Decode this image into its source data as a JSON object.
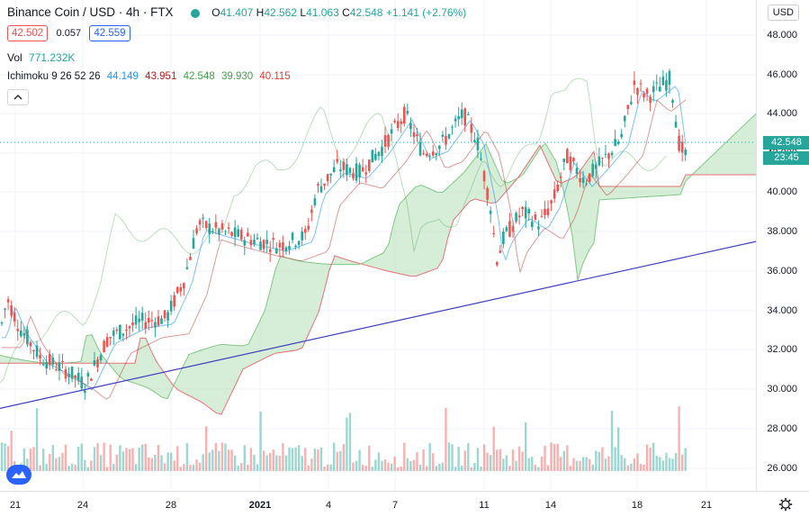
{
  "header": {
    "symbol": "Binance Coin / USD · 4h · FTX",
    "open_label": "O",
    "open": "41.407",
    "high_label": "H",
    "high": "42.562",
    "low_label": "L",
    "low": "41.063",
    "close_label": "C",
    "close": "42.548",
    "change": "+1.141 (+2.76%)"
  },
  "quote": {
    "bid": "42.502",
    "spread": "0.057",
    "ask": "42.559"
  },
  "volume": {
    "label": "Vol",
    "value": "771.232K"
  },
  "ichimoku": {
    "label": "Ichimoku 9 26 52 26",
    "v1": "44.149",
    "v2": "43.951",
    "v3": "42.548",
    "v4": "39.930",
    "v5": "40.115"
  },
  "axis": {
    "currency_button": "USD",
    "last_price": "42.548",
    "countdown": "23:45",
    "y_ticks": [
      "48.000",
      "46.000",
      "44.000",
      "42.000",
      "40.000",
      "38.000",
      "36.000",
      "34.000",
      "32.000",
      "30.000",
      "28.000",
      "26.000"
    ],
    "x_ticks": [
      "21",
      "24",
      "28",
      "2021",
      "4",
      "7",
      "11",
      "14",
      "18",
      "21"
    ]
  },
  "colors": {
    "up": "#26a69a",
    "down": "#ef5350",
    "trend": "#3f3fbf",
    "cloud_up": "#a5d6a7",
    "cloud_down": "#ef9a9a"
  },
  "icons": {
    "logo": "tradingview-logo-icon",
    "settings": "gear-icon",
    "eye": "eye-icon"
  },
  "chart_data": {
    "type": "candlestick",
    "ylim": [
      25,
      49
    ],
    "trend_line": {
      "from_close": 29.0,
      "to_close": 37.5
    }
  }
}
